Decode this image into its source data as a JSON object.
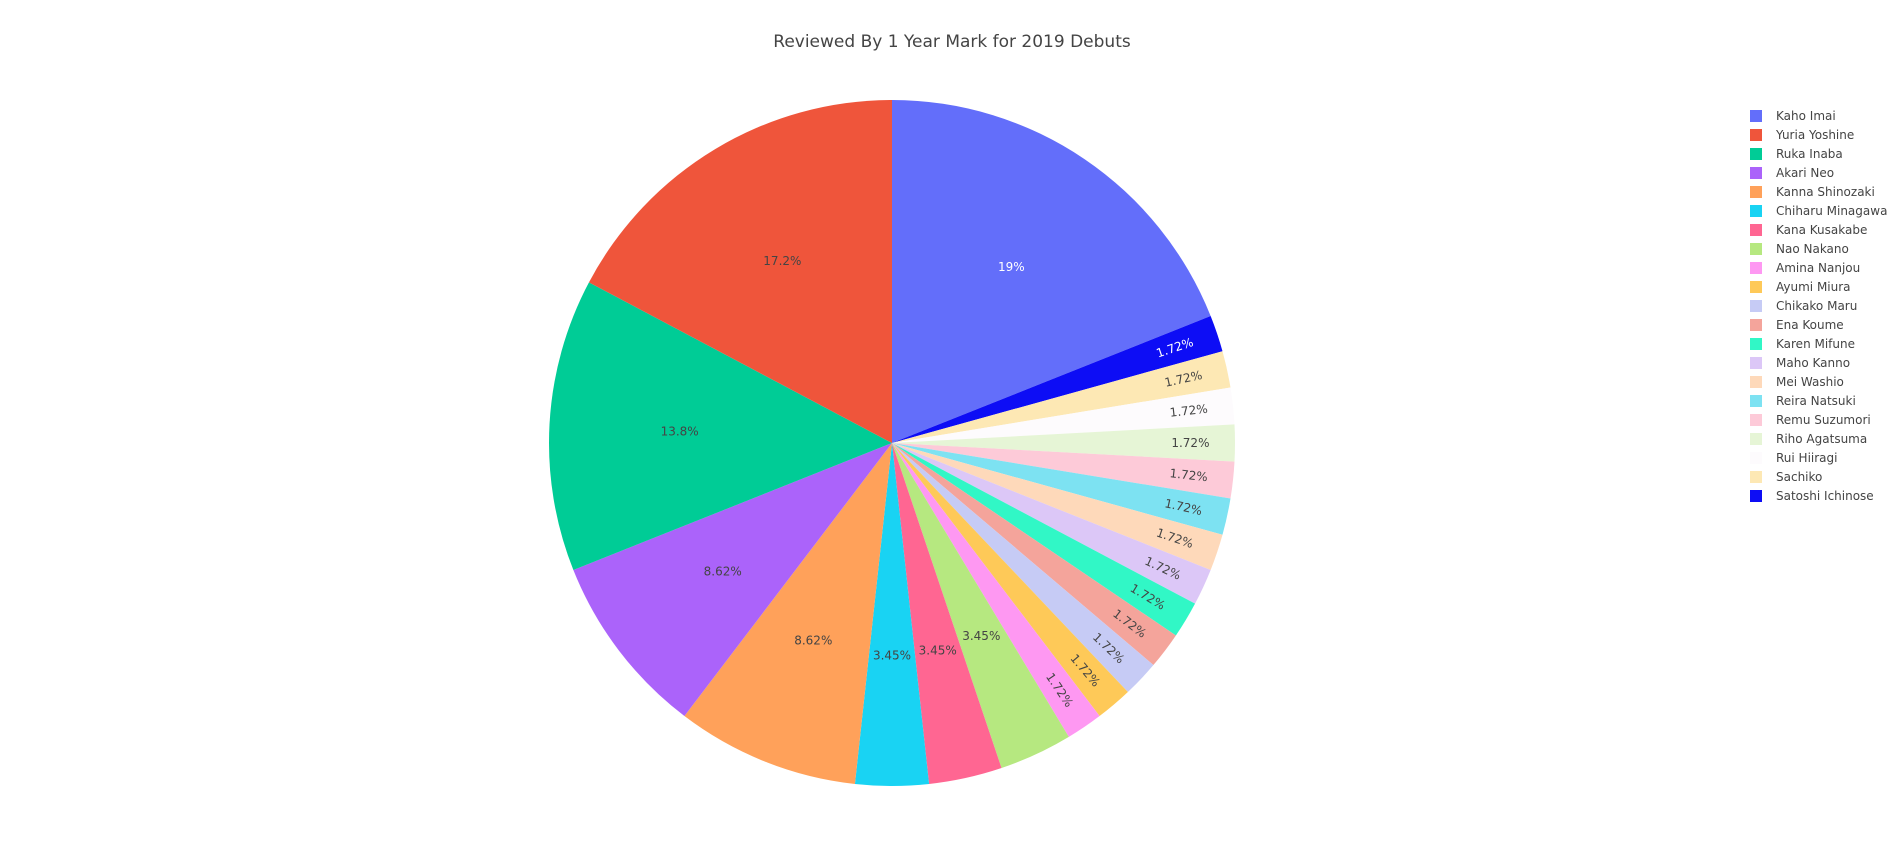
{
  "chart_data": {
    "type": "pie",
    "title": "Reviewed By 1 Year Mark for 2019 Debuts",
    "legend_position": "right",
    "direction": "clockwise",
    "slices": [
      {
        "label": "Kaho Imai",
        "value": 11,
        "percent_text": "19%",
        "color": "#636efa"
      },
      {
        "label": "Satoshi Ichinose",
        "value": 1,
        "percent_text": "1.72%",
        "color": "#0d0df5"
      },
      {
        "label": "Sachiko",
        "value": 1,
        "percent_text": "1.72%",
        "color": "#fde8b4"
      },
      {
        "label": "Rui Hiiragi",
        "value": 1,
        "percent_text": "1.72%",
        "color": "#fdfbfd"
      },
      {
        "label": "Riho Agatsuma",
        "value": 1,
        "percent_text": "1.72%",
        "color": "#e6f5d6"
      },
      {
        "label": "Remu Suzumori",
        "value": 1,
        "percent_text": "1.72%",
        "color": "#fdcad8"
      },
      {
        "label": "Reira Natsuki",
        "value": 1,
        "percent_text": "1.72%",
        "color": "#7de2f2"
      },
      {
        "label": "Mei Washio",
        "value": 1,
        "percent_text": "1.72%",
        "color": "#fed9ba"
      },
      {
        "label": "Maho Kanno",
        "value": 1,
        "percent_text": "1.72%",
        "color": "#dcc7f7"
      },
      {
        "label": "Karen Mifune",
        "value": 1,
        "percent_text": "1.72%",
        "color": "#31f7c6"
      },
      {
        "label": "Ena Koume",
        "value": 1,
        "percent_text": "1.72%",
        "color": "#f4a49b"
      },
      {
        "label": "Chikako Maru",
        "value": 1,
        "percent_text": "1.72%",
        "color": "#c6cbf5"
      },
      {
        "label": "Ayumi Miura",
        "value": 1,
        "percent_text": "1.72%",
        "color": "#fec958"
      },
      {
        "label": "Amina Nanjou",
        "value": 1,
        "percent_text": "1.72%",
        "color": "#fe98f2"
      },
      {
        "label": "Nao Nakano",
        "value": 2,
        "percent_text": "3.45%",
        "color": "#b6e880"
      },
      {
        "label": "Kana Kusakabe",
        "value": 2,
        "percent_text": "3.45%",
        "color": "#ff6692"
      },
      {
        "label": "Chiharu Minagawa",
        "value": 2,
        "percent_text": "3.45%",
        "color": "#19d3f3"
      },
      {
        "label": "Kanna Shinozaki",
        "value": 5,
        "percent_text": "8.62%",
        "color": "#ffa15a"
      },
      {
        "label": "Akari Neo",
        "value": 5,
        "percent_text": "8.62%",
        "color": "#ab63fa"
      },
      {
        "label": "Ruka Inaba",
        "value": 8,
        "percent_text": "13.8%",
        "color": "#00cc96"
      },
      {
        "label": "Yuria Yoshine",
        "value": 10,
        "percent_text": "17.2%",
        "color": "#ef553b"
      }
    ],
    "legend_order": [
      "Kaho Imai",
      "Yuria Yoshine",
      "Ruka Inaba",
      "Akari Neo",
      "Kanna Shinozaki",
      "Chiharu Minagawa",
      "Kana Kusakabe",
      "Nao Nakano",
      "Amina Nanjou",
      "Ayumi Miura",
      "Chikako Maru",
      "Ena Koume",
      "Karen Mifune",
      "Maho Kanno",
      "Mei Washio",
      "Reira Natsuki",
      "Remu Suzumori",
      "Riho Agatsuma",
      "Rui Hiiragi",
      "Sachiko",
      "Satoshi Ichinose"
    ]
  }
}
